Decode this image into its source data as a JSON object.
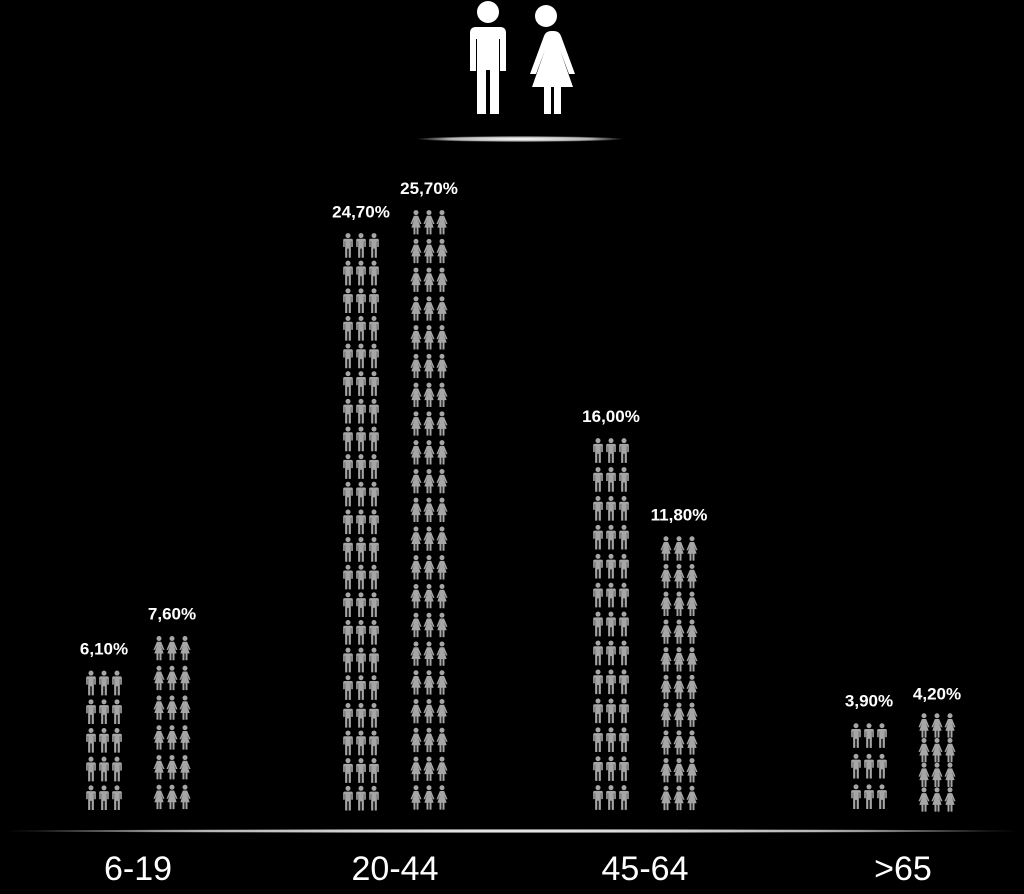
{
  "header": {
    "icon": "man-and-woman-icon"
  },
  "chart_data": {
    "type": "bar",
    "categories": [
      "6-19",
      "20-44",
      "45-64",
      ">65"
    ],
    "series": [
      {
        "icon": "male-figure-icon",
        "values": [
          6.1,
          24.7,
          16.0,
          3.9
        ],
        "labels": [
          "6,10%",
          "24,70%",
          "16,00%",
          "3,90%"
        ]
      },
      {
        "icon": "female-figure-icon",
        "values": [
          7.6,
          25.7,
          11.8,
          4.2
        ],
        "labels": [
          "7,60%",
          "25,70%",
          "11,80%",
          "4,20%"
        ]
      }
    ],
    "colors": {
      "background": "#000000",
      "figures": "#a6a6a6",
      "text": "#ffffff",
      "axis": "#ffffff"
    }
  }
}
